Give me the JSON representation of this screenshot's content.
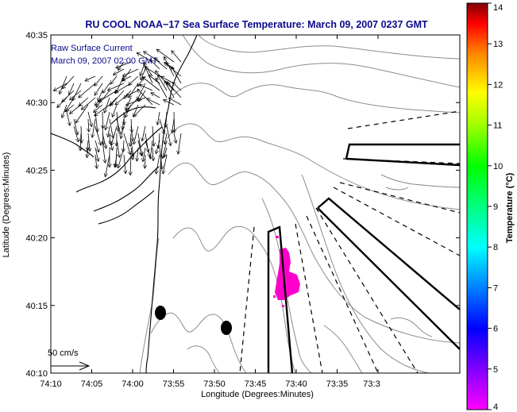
{
  "title": "RU COOL  NOAA−17  Sea Surface Temperature:  March 09, 2007 0237 GMT",
  "legend": {
    "line1": "Raw Surface Current",
    "line2": "March 09, 2007 02:00 GMT"
  },
  "scale_label": "50 cm/s",
  "axes": {
    "xlabel": "Longitude (Degrees:Minutes)",
    "ylabel": "Latitude (Degrees:Minutes)",
    "x_ticks": [
      "74:10",
      "74:05",
      "74:00",
      "73:55",
      "73:50",
      "73:45",
      "73:40",
      "73:35",
      "73:3"
    ],
    "y_ticks": [
      "40:35",
      "40:30",
      "40:25",
      "40:20",
      "40:15",
      "40:10"
    ]
  },
  "colorbar": {
    "label": "Temperature (°C)",
    "min": 4,
    "max": 14,
    "ticks": [
      "14",
      "13",
      "12",
      "11",
      "10",
      "9",
      "8",
      "7",
      "6",
      "5",
      "4"
    ],
    "colors": [
      "#ff00ff",
      "#7f00ff",
      "#0000ff",
      "#0080ff",
      "#00ffff",
      "#00ff80",
      "#00ff00",
      "#80ff00",
      "#ffff00",
      "#ff8000",
      "#ff0000",
      "#800000"
    ]
  },
  "map_colors": {
    "land": "#ffffff",
    "contour": "#8c8c8c",
    "warm_patch": "#ff00cc",
    "frame": "#000000"
  }
}
